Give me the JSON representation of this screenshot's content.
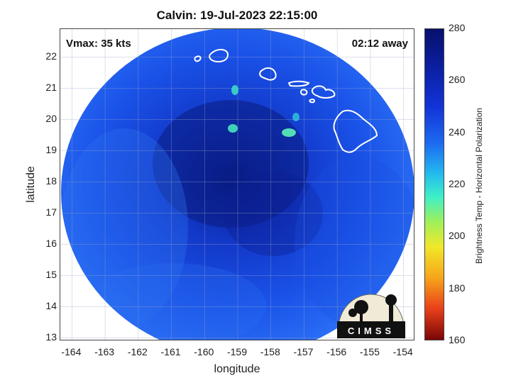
{
  "title": "Calvin: 19-Jul-2023 22:15:00",
  "vmax": "Vmax: 35 kts",
  "time_away": "02:12 away",
  "xlabel": "longitude",
  "ylabel": "latitude",
  "x_ticks": [
    "-164",
    "-163",
    "-162",
    "-161",
    "-160",
    "-159",
    "-158",
    "-157",
    "-156",
    "-155",
    "-154"
  ],
  "y_ticks": [
    "22",
    "21",
    "20",
    "19",
    "18",
    "17",
    "16",
    "15",
    "14",
    "13"
  ],
  "x_range": [
    -164.35,
    -153.65
  ],
  "y_range": [
    12.9,
    22.9
  ],
  "colorbar": {
    "title": "Brightness Temp - Horizontal Polarization",
    "ticks": [
      "280",
      "260",
      "240",
      "220",
      "200",
      "180",
      "160"
    ],
    "range": [
      160,
      280
    ]
  },
  "logo_text": "CIMSS",
  "colors": {
    "swath_dark": "#0a1d8c",
    "swath_mid": "#1744e0",
    "swath_light": "#2a6ef5",
    "coast": "#ffffff"
  }
}
